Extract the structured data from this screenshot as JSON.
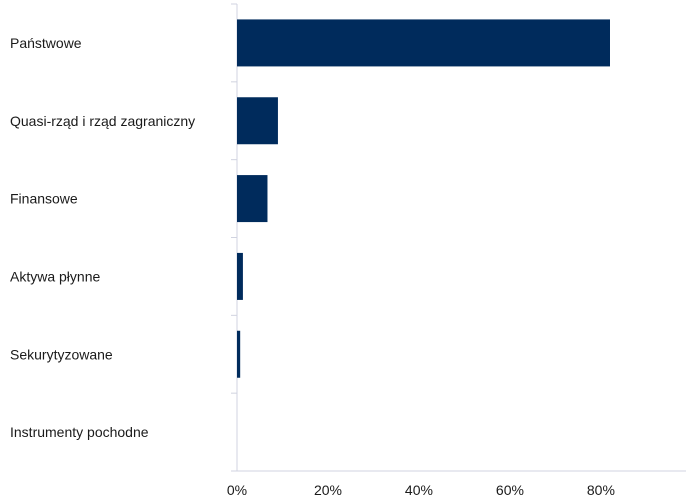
{
  "chart_data": {
    "type": "bar",
    "orientation": "horizontal",
    "categories": [
      "Państwowe",
      "Quasi-rząd i rząd zagraniczny",
      "Finansowe",
      "Aktywa płynne",
      "Sekurytyzowane",
      "Instrumenty pochodne"
    ],
    "values": [
      82,
      9,
      6.7,
      1.3,
      0.7,
      0
    ],
    "xlim": [
      0,
      100
    ],
    "xticks": [
      0,
      20,
      40,
      60,
      80
    ],
    "xtick_labels": [
      "0%",
      "20%",
      "40%",
      "60%",
      "80%"
    ],
    "grid": false,
    "legend": "none",
    "bar_color": "#002b5c",
    "axis_color": "#d0d3e0"
  }
}
